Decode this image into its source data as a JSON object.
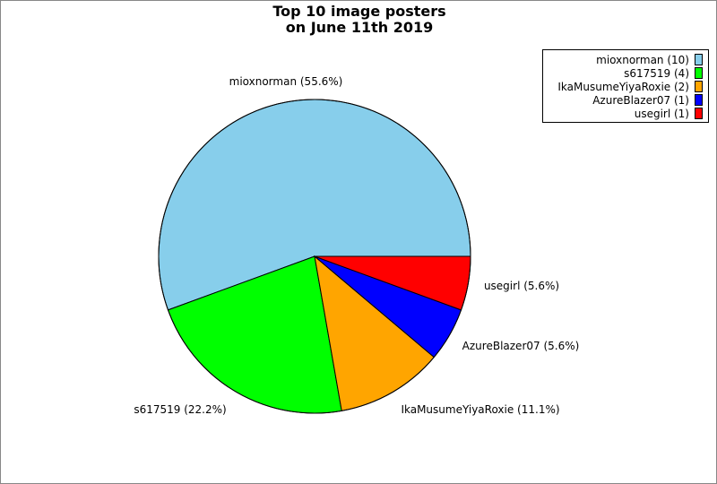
{
  "chart_data": {
    "type": "pie",
    "title_lines": [
      "Top 10 image posters",
      "on June 11th 2019"
    ],
    "slices": [
      {
        "name": "mioxnorman",
        "value": 10,
        "label": "mioxnorman (55.6%)",
        "legend": "mioxnorman (10)",
        "color": "#87ceeb"
      },
      {
        "name": "s617519",
        "value": 4,
        "label": "s617519 (22.2%)",
        "legend": "s617519 (4)",
        "color": "#00ff00"
      },
      {
        "name": "IkaMusumeYiyaRoxie",
        "value": 2,
        "label": "IkaMusumeYiyaRoxie (11.1%)",
        "legend": "IkaMusumeYiyaRoxie (2)",
        "color": "#ffa500"
      },
      {
        "name": "AzureBlazer07",
        "value": 1,
        "label": "AzureBlazer07 (5.6%)",
        "legend": "AzureBlazer07 (1)",
        "color": "#0000ff"
      },
      {
        "name": "usegirl",
        "value": 1,
        "label": "usegirl (5.6%)",
        "legend": "usegirl (1)",
        "color": "#ff0000"
      }
    ],
    "legend_position": "top-right"
  }
}
